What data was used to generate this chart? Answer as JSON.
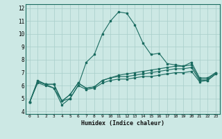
{
  "xlabel": "Humidex (Indice chaleur)",
  "bg_color": "#cce8e4",
  "line_color": "#1a6b60",
  "grid_color": "#a8cec9",
  "xlim": [
    -0.5,
    23.5
  ],
  "ylim": [
    3.8,
    12.3
  ],
  "xticks": [
    0,
    1,
    2,
    3,
    4,
    5,
    6,
    7,
    8,
    9,
    10,
    11,
    12,
    13,
    14,
    15,
    16,
    17,
    18,
    19,
    20,
    21,
    22,
    23
  ],
  "yticks": [
    4,
    5,
    6,
    7,
    8,
    9,
    10,
    11,
    12
  ],
  "series": [
    [
      4.7,
      6.4,
      6.1,
      5.8,
      4.5,
      5.0,
      6.0,
      7.8,
      8.4,
      10.0,
      11.0,
      11.7,
      11.6,
      10.7,
      9.3,
      8.4,
      8.5,
      7.7,
      7.6,
      7.5,
      7.8,
      6.6,
      6.6,
      7.0
    ],
    [
      4.7,
      6.3,
      6.1,
      6.1,
      4.8,
      5.3,
      6.2,
      5.8,
      5.9,
      6.4,
      6.6,
      6.8,
      6.9,
      7.0,
      7.1,
      7.2,
      7.3,
      7.4,
      7.5,
      7.5,
      7.6,
      6.5,
      6.5,
      7.0
    ],
    [
      4.7,
      6.3,
      6.1,
      6.1,
      4.8,
      5.3,
      6.2,
      5.8,
      5.9,
      6.4,
      6.6,
      6.7,
      6.7,
      6.8,
      6.9,
      7.0,
      7.1,
      7.2,
      7.3,
      7.3,
      7.4,
      6.4,
      6.4,
      6.9
    ],
    [
      4.7,
      6.2,
      6.0,
      5.8,
      4.8,
      5.0,
      6.0,
      5.7,
      5.8,
      6.2,
      6.4,
      6.5,
      6.5,
      6.6,
      6.7,
      6.7,
      6.8,
      6.9,
      7.0,
      7.0,
      7.1,
      6.3,
      6.4,
      6.9
    ]
  ]
}
